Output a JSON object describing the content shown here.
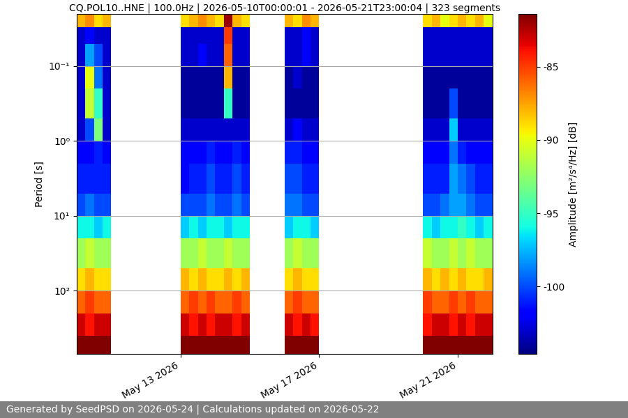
{
  "chart_data": {
    "type": "heatmap",
    "title": "CQ.POL10..HNE | 100.0Hz | 2026-05-10T00:00:01 - 2026-05-21T23:00:04 | 323 segments",
    "ylabel": "Period [s]",
    "footer": "Generated by SeedPSD on 2026-05-24 | Calculations updated on 2026-05-22",
    "log": "y",
    "grid": true,
    "color": "jet",
    "x": [
      "2026-05-10T00:00",
      "2026-05-10T06:00",
      "2026-05-10T12:00",
      "2026-05-10T18:00",
      "2026-05-11T00:00",
      "2026-05-11T06:00",
      "2026-05-11T12:00",
      "2026-05-11T18:00",
      "2026-05-12T00:00",
      "2026-05-12T06:00",
      "2026-05-12T12:00",
      "2026-05-12T18:00",
      "2026-05-13T00:00",
      "2026-05-13T06:00",
      "2026-05-13T12:00",
      "2026-05-13T18:00",
      "2026-05-14T00:00",
      "2026-05-14T06:00",
      "2026-05-14T12:00",
      "2026-05-14T18:00",
      "2026-05-15T00:00",
      "2026-05-15T06:00",
      "2026-05-15T12:00",
      "2026-05-15T18:00",
      "2026-05-16T00:00",
      "2026-05-16T06:00",
      "2026-05-16T12:00",
      "2026-05-16T18:00",
      "2026-05-17T00:00",
      "2026-05-17T06:00",
      "2026-05-17T12:00",
      "2026-05-17T18:00",
      "2026-05-18T00:00",
      "2026-05-18T06:00",
      "2026-05-18T12:00",
      "2026-05-18T18:00",
      "2026-05-19T00:00",
      "2026-05-19T06:00",
      "2026-05-19T12:00",
      "2026-05-19T18:00",
      "2026-05-20T00:00",
      "2026-05-20T06:00",
      "2026-05-20T12:00",
      "2026-05-20T18:00",
      "2026-05-21T00:00",
      "2026-05-21T06:00",
      "2026-05-21T12:00",
      "2026-05-21T18:00",
      "2026-05-22T00:00"
    ],
    "y": [
      0.02,
      0.03,
      0.05,
      0.1,
      0.2,
      0.5,
      1,
      2,
      5,
      10,
      20,
      50,
      100,
      200,
      400,
      700
    ],
    "cells": [
      [
        -88,
        -87,
        -89,
        -88,
        null,
        null,
        null,
        null,
        null,
        null,
        null,
        null,
        -89,
        -88,
        -87,
        -88,
        -89,
        -82,
        -88,
        -89,
        null,
        null,
        null,
        null,
        -88,
        -89,
        -87,
        -88,
        null,
        null,
        null,
        null,
        null,
        null,
        null,
        null,
        null,
        null,
        null,
        null,
        -89,
        -88,
        -90,
        -89,
        -88,
        -89,
        -88,
        -90
      ],
      [
        -103,
        -102,
        -103,
        -103,
        null,
        null,
        null,
        null,
        null,
        null,
        null,
        null,
        -103,
        -103,
        -103,
        -103,
        -103,
        -85,
        -103,
        -103,
        null,
        null,
        null,
        null,
        -103,
        -103,
        -102,
        -103,
        null,
        null,
        null,
        null,
        null,
        null,
        null,
        null,
        null,
        null,
        null,
        null,
        -103,
        -103,
        -103,
        -103,
        -103,
        -103,
        -103,
        -103
      ],
      [
        -103,
        -98,
        -100,
        -103,
        null,
        null,
        null,
        null,
        null,
        null,
        null,
        null,
        -103,
        -103,
        -102,
        -103,
        -103,
        -86,
        -103,
        -103,
        null,
        null,
        null,
        null,
        -103,
        -103,
        -102,
        -103,
        null,
        null,
        null,
        null,
        null,
        null,
        null,
        null,
        null,
        null,
        null,
        null,
        -103,
        -103,
        -103,
        -103,
        -103,
        -103,
        -103,
        -103
      ],
      [
        -103,
        -90,
        -99,
        -103,
        null,
        null,
        null,
        null,
        null,
        null,
        null,
        null,
        -104,
        -104,
        -104,
        -104,
        -104,
        -88,
        -104,
        -104,
        null,
        null,
        null,
        null,
        -104,
        -103,
        -104,
        -104,
        null,
        null,
        null,
        null,
        null,
        null,
        null,
        null,
        null,
        null,
        null,
        null,
        -104,
        -104,
        -104,
        -104,
        -104,
        -104,
        -104,
        -104
      ],
      [
        -103,
        -91,
        -95,
        -103,
        null,
        null,
        null,
        null,
        null,
        null,
        null,
        null,
        -104,
        -104,
        -104,
        -104,
        -104,
        -95,
        -104,
        -104,
        null,
        null,
        null,
        null,
        -104,
        -104,
        -104,
        -104,
        null,
        null,
        null,
        null,
        null,
        null,
        null,
        null,
        null,
        null,
        null,
        null,
        -104,
        -104,
        -104,
        -100,
        -104,
        -104,
        -104,
        -104
      ],
      [
        -103,
        -100,
        -93,
        -103,
        null,
        null,
        null,
        null,
        null,
        null,
        null,
        null,
        -103,
        -103,
        -103,
        -103,
        -103,
        -103,
        -103,
        -103,
        null,
        null,
        null,
        null,
        -103,
        -102,
        -103,
        -103,
        null,
        null,
        null,
        null,
        null,
        null,
        null,
        null,
        null,
        null,
        null,
        null,
        -103,
        -103,
        -103,
        -97,
        -103,
        -103,
        -103,
        -103
      ],
      [
        -102,
        -102,
        -101,
        -102,
        null,
        null,
        null,
        null,
        null,
        null,
        null,
        null,
        -102,
        -102,
        -102,
        -101,
        -102,
        -102,
        -101,
        -102,
        null,
        null,
        null,
        null,
        -101,
        -101,
        -102,
        -102,
        null,
        null,
        null,
        null,
        null,
        null,
        null,
        null,
        null,
        null,
        null,
        null,
        -102,
        -102,
        -102,
        -99,
        -101,
        -102,
        -102,
        -102
      ],
      [
        -101,
        -101,
        -101,
        -101,
        null,
        null,
        null,
        null,
        null,
        null,
        null,
        null,
        -102,
        -101,
        -101,
        -100,
        -101,
        -101,
        -100,
        -101,
        null,
        null,
        null,
        null,
        -100,
        -100,
        -101,
        -101,
        null,
        null,
        null,
        null,
        null,
        null,
        null,
        null,
        null,
        null,
        null,
        null,
        -101,
        -101,
        -101,
        -98,
        -99,
        -100,
        -101,
        -101
      ],
      [
        -100,
        -99,
        -100,
        -100,
        null,
        null,
        null,
        null,
        null,
        null,
        null,
        null,
        -100,
        -100,
        -100,
        -99,
        -100,
        -100,
        -99,
        -100,
        null,
        null,
        null,
        null,
        -99,
        -99,
        -100,
        -100,
        null,
        null,
        null,
        null,
        null,
        null,
        null,
        null,
        null,
        null,
        null,
        null,
        -100,
        -100,
        -99,
        -98,
        -98,
        -99,
        -100,
        -100
      ],
      [
        -96,
        -96,
        -97,
        -96,
        null,
        null,
        null,
        null,
        null,
        null,
        null,
        null,
        -97,
        -96,
        -97,
        -96,
        -96,
        -97,
        -96,
        -96,
        null,
        null,
        null,
        null,
        -97,
        -96,
        -96,
        -97,
        null,
        null,
        null,
        null,
        null,
        null,
        null,
        null,
        null,
        null,
        null,
        null,
        -96,
        -97,
        -96,
        -96,
        -95,
        -96,
        -97,
        -96
      ],
      [
        -92,
        -91,
        -92,
        -92,
        null,
        null,
        null,
        null,
        null,
        null,
        null,
        null,
        -92,
        -92,
        -91,
        -92,
        -92,
        -91,
        -92,
        -92,
        null,
        null,
        null,
        null,
        -92,
        -91,
        -92,
        -92,
        null,
        null,
        null,
        null,
        null,
        null,
        null,
        null,
        null,
        null,
        null,
        null,
        -91,
        -92,
        -92,
        -91,
        -92,
        -91,
        -92,
        -92
      ],
      [
        -89,
        -88,
        -89,
        -89,
        null,
        null,
        null,
        null,
        null,
        null,
        null,
        null,
        -88,
        -89,
        -88,
        -89,
        -89,
        -88,
        -89,
        -88,
        null,
        null,
        null,
        null,
        -89,
        -88,
        -89,
        -89,
        null,
        null,
        null,
        null,
        null,
        null,
        null,
        null,
        null,
        null,
        null,
        null,
        -88,
        -89,
        -88,
        -89,
        -88,
        -89,
        -89,
        -88
      ],
      [
        -86,
        -85,
        -86,
        -86,
        null,
        null,
        null,
        null,
        null,
        null,
        null,
        null,
        -86,
        -85,
        -86,
        -85,
        -86,
        -86,
        -85,
        -86,
        null,
        null,
        null,
        null,
        -86,
        -85,
        -86,
        -86,
        null,
        null,
        null,
        null,
        null,
        null,
        null,
        null,
        null,
        null,
        null,
        null,
        -85,
        -86,
        -86,
        -85,
        -86,
        -85,
        -86,
        -86
      ],
      [
        -83,
        -84,
        -83,
        -83,
        null,
        null,
        null,
        null,
        null,
        null,
        null,
        null,
        -83,
        -84,
        -83,
        -84,
        -83,
        -83,
        -84,
        -83,
        null,
        null,
        null,
        null,
        -83,
        -84,
        -83,
        -84,
        null,
        null,
        null,
        null,
        null,
        null,
        null,
        null,
        null,
        null,
        null,
        null,
        -84,
        -83,
        -83,
        -84,
        -83,
        -84,
        -83,
        -83
      ],
      [
        -81,
        -81,
        -81,
        -81,
        null,
        null,
        null,
        null,
        null,
        null,
        null,
        null,
        -81,
        -81,
        -81,
        -81,
        -81,
        -81,
        -81,
        -81,
        null,
        null,
        null,
        null,
        -81,
        -81,
        -81,
        -81,
        null,
        null,
        null,
        null,
        null,
        null,
        null,
        null,
        null,
        null,
        null,
        null,
        -81,
        -81,
        -81,
        -81,
        -81,
        -81,
        -81,
        -81
      ]
    ],
    "xlim": [
      "2026-05-10T00:00",
      "2026-05-22T00:00"
    ],
    "xticks": [
      {
        "value": "2026-05-13T00:00",
        "label": "May 13 2026"
      },
      {
        "value": "2026-05-17T00:00",
        "label": "May 17 2026"
      },
      {
        "value": "2026-05-21T00:00",
        "label": "May 21 2026"
      }
    ],
    "ylim": [
      700,
      0.02
    ],
    "yticks": [
      {
        "value": 0.1,
        "label": "10⁻¹"
      },
      {
        "value": 1,
        "label": "10⁰"
      },
      {
        "value": 10,
        "label": "10¹"
      },
      {
        "value": 100,
        "label": "10²"
      }
    ],
    "colorbar": {
      "label": "Amplitude [m²/s⁴/Hz] [dB]",
      "range": [
        -104.6,
        -81.4
      ],
      "ticks": [
        -85,
        -90,
        -95,
        -100
      ]
    }
  }
}
